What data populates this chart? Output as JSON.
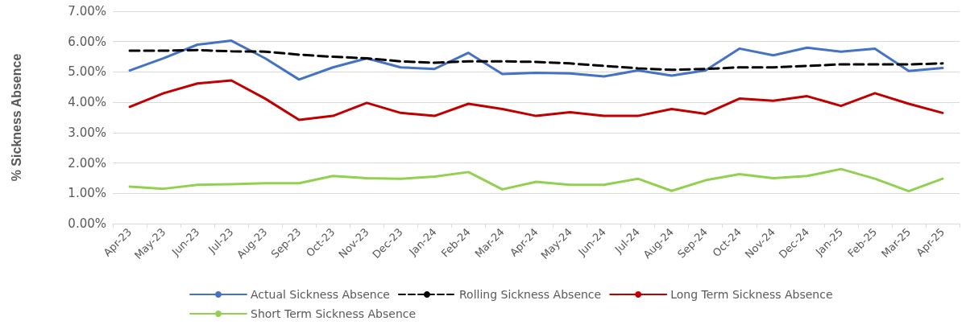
{
  "chart_data": {
    "type": "line",
    "ylabel": "% Sickness Absence",
    "categories": [
      "Apr-23",
      "May-23",
      "Jun-23",
      "Jul-23",
      "Aug-23",
      "Sep-23",
      "Oct-23",
      "Nov-23",
      "Dec-23",
      "Jan-24",
      "Feb-24",
      "Mar-24",
      "Apr-24",
      "May-24",
      "Jun-24",
      "Jul-24",
      "Aug-24",
      "Sep-24",
      "Oct-24",
      "Nov-24",
      "Dec-24",
      "Jan-25",
      "Feb-25",
      "Mar-25",
      "Apr-25"
    ],
    "series": [
      {
        "name": "Actual Sickness Absence",
        "color": "#4472c4",
        "values": [
          5.05,
          5.45,
          5.9,
          6.03,
          5.45,
          4.75,
          5.15,
          5.45,
          5.15,
          5.1,
          5.63,
          4.93,
          4.97,
          4.95,
          4.85,
          5.05,
          4.88,
          5.05,
          5.77,
          5.55,
          5.8,
          5.67,
          5.77,
          5.03,
          5.13
        ]
      },
      {
        "name": "Rolling Sickness Absence",
        "color": "#000000",
        "line_style": "dashed",
        "values": [
          5.7,
          5.7,
          5.72,
          5.68,
          5.67,
          5.57,
          5.5,
          5.45,
          5.35,
          5.3,
          5.35,
          5.35,
          5.33,
          5.28,
          5.2,
          5.12,
          5.07,
          5.1,
          5.15,
          5.15,
          5.2,
          5.25,
          5.25,
          5.25,
          5.28
        ]
      },
      {
        "name": "Long Term Sickness Absence",
        "color": "#c00000",
        "values": [
          3.85,
          4.3,
          4.62,
          4.72,
          4.12,
          3.42,
          3.55,
          3.98,
          3.65,
          3.55,
          3.95,
          3.78,
          3.55,
          3.67,
          3.55,
          3.55,
          3.78,
          3.62,
          4.12,
          4.05,
          4.2,
          3.88,
          4.3,
          3.95,
          3.65
        ]
      },
      {
        "name": "Short Term Sickness Absence",
        "color": "#92d050",
        "values": [
          1.22,
          1.15,
          1.28,
          1.3,
          1.33,
          1.33,
          1.57,
          1.5,
          1.48,
          1.55,
          1.7,
          1.13,
          1.38,
          1.28,
          1.28,
          1.48,
          1.08,
          1.43,
          1.63,
          1.5,
          1.57,
          1.8,
          1.48,
          1.07,
          1.48
        ]
      }
    ],
    "ylim": [
      0,
      7
    ],
    "yticks": [
      {
        "value": 0,
        "label": "0.00%"
      },
      {
        "value": 1,
        "label": "1.00%"
      },
      {
        "value": 2,
        "label": "2.00%"
      },
      {
        "value": 3,
        "label": "3.00%"
      },
      {
        "value": 4,
        "label": "4.00%"
      },
      {
        "value": 5,
        "label": "5.00%"
      },
      {
        "value": 6,
        "label": "6.00%"
      },
      {
        "value": 7,
        "label": "7.00%"
      }
    ],
    "grid": "y",
    "legend": "bottom",
    "marker": "none",
    "line_style": "solid"
  }
}
